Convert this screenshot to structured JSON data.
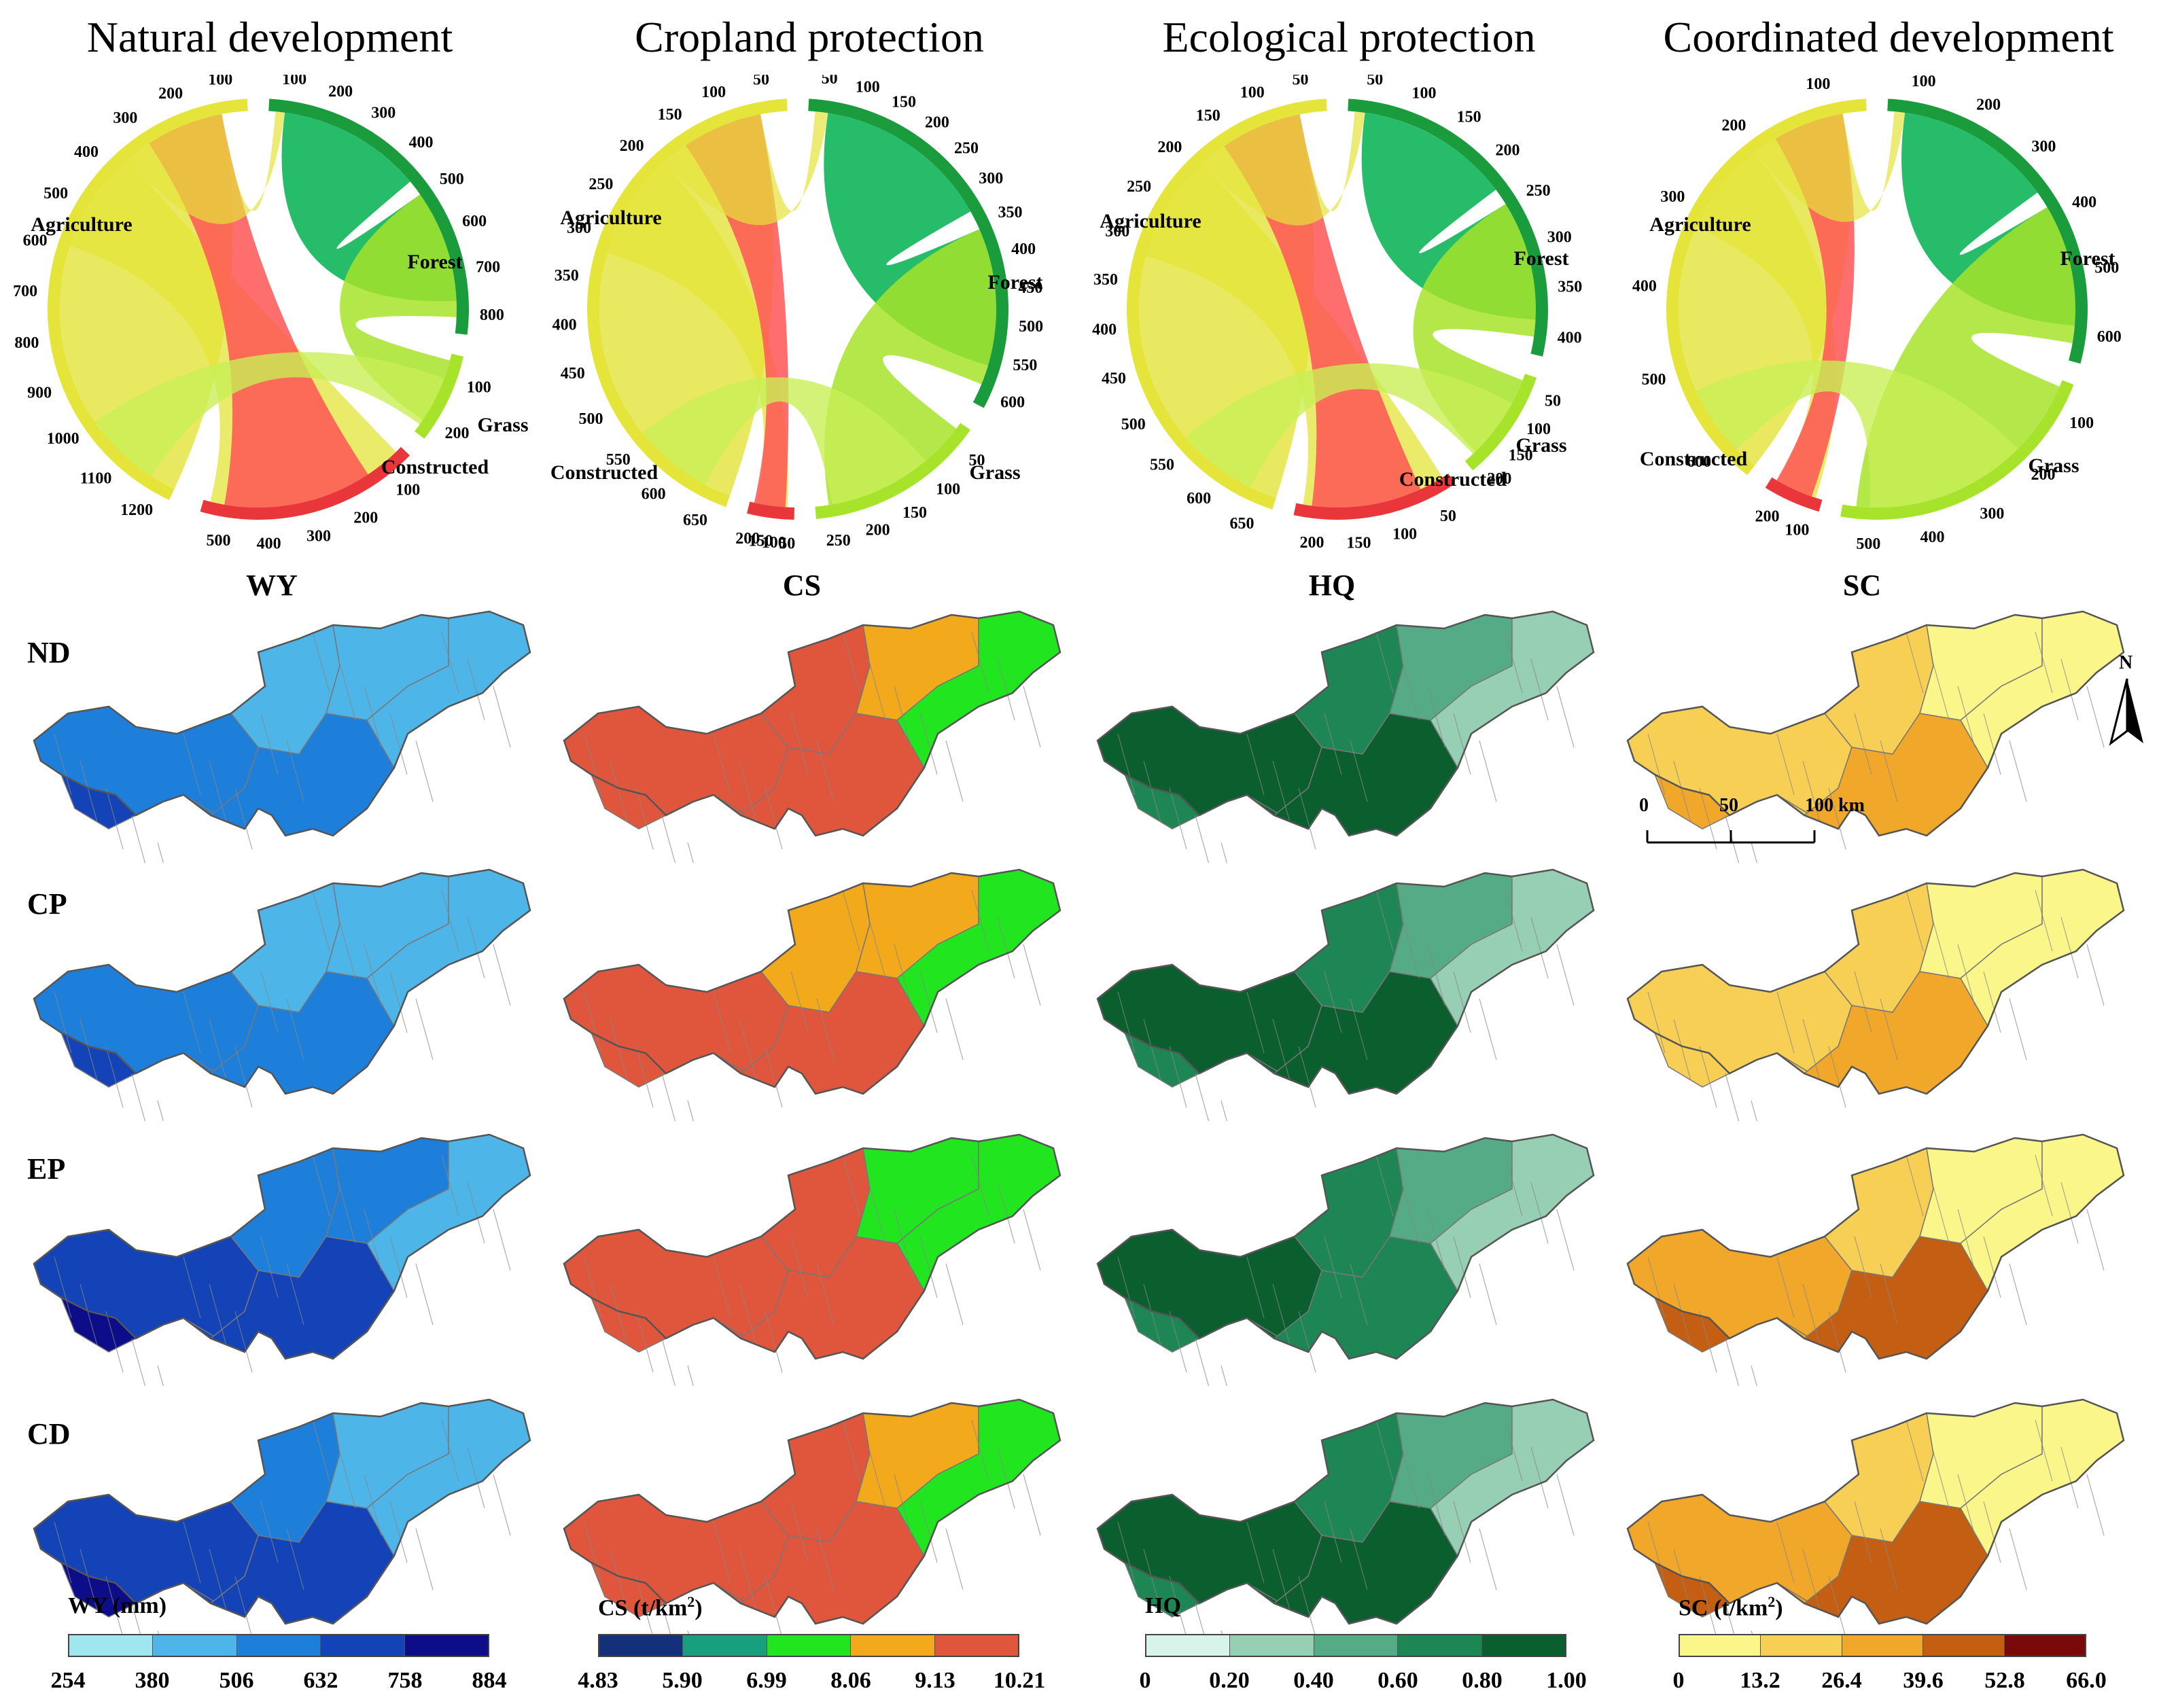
{
  "scenarios": [
    {
      "title": "Natural development",
      "abbr": "ND",
      "arcs": [
        {
          "name": "Agriculture",
          "color": "#e4e43a",
          "ticks": [
            "1200",
            "1100",
            "1000",
            "900",
            "800",
            "700",
            "600",
            "500",
            "400",
            "300",
            "200",
            "100"
          ]
        },
        {
          "name": "Forest",
          "color": "#1a9b3c",
          "ticks": [
            "100",
            "200",
            "300",
            "400",
            "500",
            "600",
            "700",
            "800"
          ]
        },
        {
          "name": "Grass",
          "color": "#a6e32a",
          "ticks": [
            "100",
            "200"
          ]
        },
        {
          "name": "Constructed",
          "color": "#e8363a",
          "ticks": [
            "100",
            "200",
            "300",
            "400",
            "500"
          ]
        }
      ]
    },
    {
      "title": "Cropland protection",
      "abbr": "CP",
      "arcs": [
        {
          "name": "Agriculture",
          "color": "#e4e43a",
          "ticks": [
            "650",
            "600",
            "550",
            "500",
            "450",
            "400",
            "350",
            "300",
            "250",
            "200",
            "150",
            "100",
            "50"
          ]
        },
        {
          "name": "Forest",
          "color": "#1a9b3c",
          "ticks": [
            "50",
            "100",
            "150",
            "200",
            "250",
            "300",
            "350",
            "400",
            "450",
            "500",
            "550",
            "600"
          ]
        },
        {
          "name": "Grass",
          "color": "#a6e32a",
          "ticks": [
            "50",
            "100",
            "150",
            "200",
            "250"
          ]
        },
        {
          "name": "Constructed",
          "color": "#e8363a",
          "ticks": [
            "50",
            "100",
            "150",
            "200"
          ]
        }
      ]
    },
    {
      "title": "Ecological protection",
      "abbr": "EP",
      "arcs": [
        {
          "name": "Agriculture",
          "color": "#e4e43a",
          "ticks": [
            "650",
            "600",
            "550",
            "500",
            "450",
            "400",
            "350",
            "300",
            "250",
            "200",
            "150",
            "100",
            "50"
          ]
        },
        {
          "name": "Forest",
          "color": "#1a9b3c",
          "ticks": [
            "50",
            "100",
            "150",
            "200",
            "250",
            "300",
            "350",
            "400"
          ]
        },
        {
          "name": "Grass",
          "color": "#a6e32a",
          "ticks": [
            "50",
            "100",
            "150",
            "200"
          ]
        },
        {
          "name": "Constructed",
          "color": "#e8363a",
          "ticks": [
            "50",
            "100",
            "150",
            "200"
          ]
        }
      ]
    },
    {
      "title": "Coordinated development",
      "abbr": "CD",
      "arcs": [
        {
          "name": "Agriculture",
          "color": "#e4e43a",
          "ticks": [
            "600",
            "500",
            "400",
            "300",
            "200",
            "100"
          ]
        },
        {
          "name": "Forest",
          "color": "#1a9b3c",
          "ticks": [
            "100",
            "200",
            "300",
            "400",
            "500",
            "600"
          ]
        },
        {
          "name": "Grass",
          "color": "#a6e32a",
          "ticks": [
            "100",
            "200",
            "300",
            "400",
            "500"
          ]
        },
        {
          "name": "Constructed",
          "color": "#e8363a",
          "ticks": [
            "100",
            "200"
          ]
        }
      ]
    }
  ],
  "services": [
    "WY",
    "CS",
    "HQ",
    "SC"
  ],
  "legends": [
    {
      "title": "WY (mm)",
      "ticks": [
        "254",
        "380",
        "506",
        "632",
        "758",
        "884"
      ],
      "colors": [
        "#9fe6ef",
        "#4db5e8",
        "#1e7fdb",
        "#1443b8",
        "#0d0d8a"
      ]
    },
    {
      "title": "CS (t/km",
      "title_sup": "2",
      "title_end": ")",
      "ticks": [
        "4.83",
        "5.90",
        "6.99",
        "8.06",
        "9.13",
        "10.21"
      ],
      "colors": [
        "#15307a",
        "#18a07e",
        "#21e51f",
        "#f2a91b",
        "#e0563c"
      ]
    },
    {
      "title": "HQ",
      "ticks": [
        "0",
        "0.20",
        "0.40",
        "0.60",
        "0.80",
        "1.00"
      ],
      "colors": [
        "#d8f4ea",
        "#96cfb4",
        "#54ab85",
        "#1e8655",
        "#0b5e2e"
      ]
    },
    {
      "title": "SC (t/km",
      "title_sup": "2",
      "title_end": ")",
      "ticks": [
        "0",
        "13.2",
        "26.4",
        "39.6",
        "52.8",
        "66.0"
      ],
      "colors": [
        "#fbf68a",
        "#f7cf55",
        "#f0a72a",
        "#c35e12",
        "#7a0a0a"
      ]
    }
  ],
  "compass": {
    "label": "N"
  },
  "scalebar": {
    "labels": [
      "0",
      "50",
      "100 km"
    ]
  }
}
